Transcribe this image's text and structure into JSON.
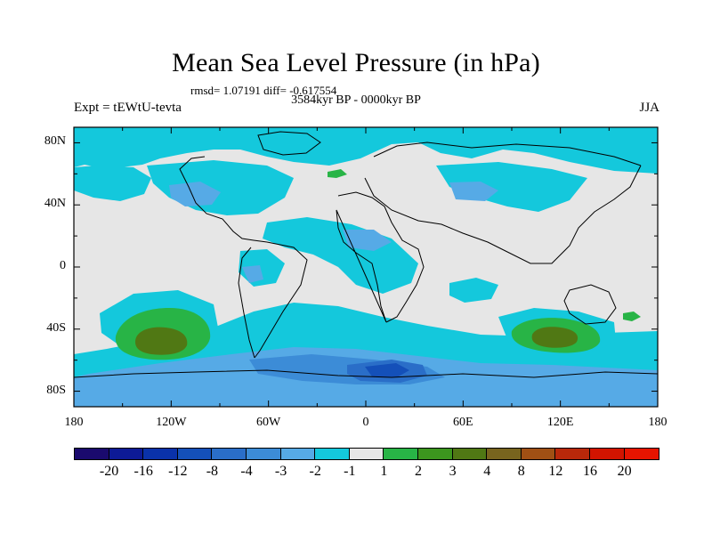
{
  "title": "Mean Sea Level Pressure (in hPa)",
  "stats": "rmsd= 1.07191 diff= -0.617554",
  "subtitle": "3584kyr BP - 0000kyr BP",
  "experiment": "Expt = tEWtU-tevta",
  "season": "JJA",
  "map": {
    "x_ticks": [
      "180",
      "120W",
      "60W",
      "0",
      "60E",
      "120E",
      "180"
    ],
    "y_ticks": [
      "80N",
      "40N",
      "0",
      "40S",
      "80S"
    ],
    "lon_range": [
      -180,
      180
    ],
    "lat_range": [
      -90,
      90
    ]
  },
  "colorbar": {
    "colors": [
      "#1a0a6e",
      "#0d1a96",
      "#0a32aa",
      "#1450b9",
      "#2a6ec8",
      "#3c8cd7",
      "#56aae6",
      "#14c8dc",
      "#e6e6e6",
      "#28b446",
      "#3c961e",
      "#507814",
      "#78641e",
      "#a05014",
      "#b9280a",
      "#d21400",
      "#e61400"
    ],
    "labels": [
      "-20",
      "-16",
      "-12",
      "-8",
      "-4",
      "-3",
      "-2",
      "-1",
      "1",
      "2",
      "3",
      "4",
      "8",
      "12",
      "16",
      "20"
    ]
  },
  "colors": {
    "neutral": "#e6e6e6",
    "cyan": "#14c8dc",
    "light_blue": "#56aae6",
    "mid_blue": "#3c8cd7",
    "blue": "#2a6ec8",
    "dark_blue": "#1450b9",
    "green": "#28b446",
    "dark_green": "#507814"
  }
}
